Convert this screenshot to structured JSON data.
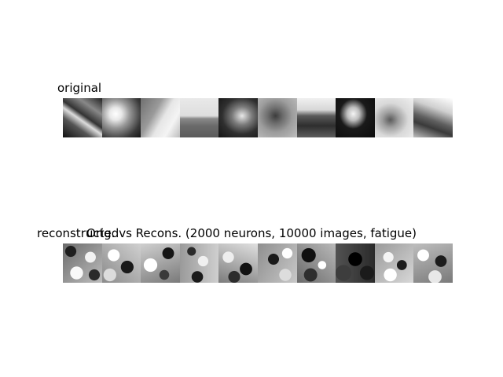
{
  "figure": {
    "title": "Orig. vs Recons. (2000 neurons, 10000 images, fatigue)"
  },
  "rows": [
    {
      "label": "original",
      "tiles": [
        "tile-1",
        "tile-2",
        "tile-3",
        "tile-4",
        "tile-5",
        "tile-6",
        "tile-7",
        "tile-8",
        "tile-9",
        "tile-10"
      ]
    },
    {
      "label": "reconstructed",
      "tiles": [
        "tile-1",
        "tile-2",
        "tile-3",
        "tile-4",
        "tile-5",
        "tile-6",
        "tile-7",
        "tile-8",
        "tile-9",
        "tile-10"
      ]
    }
  ]
}
